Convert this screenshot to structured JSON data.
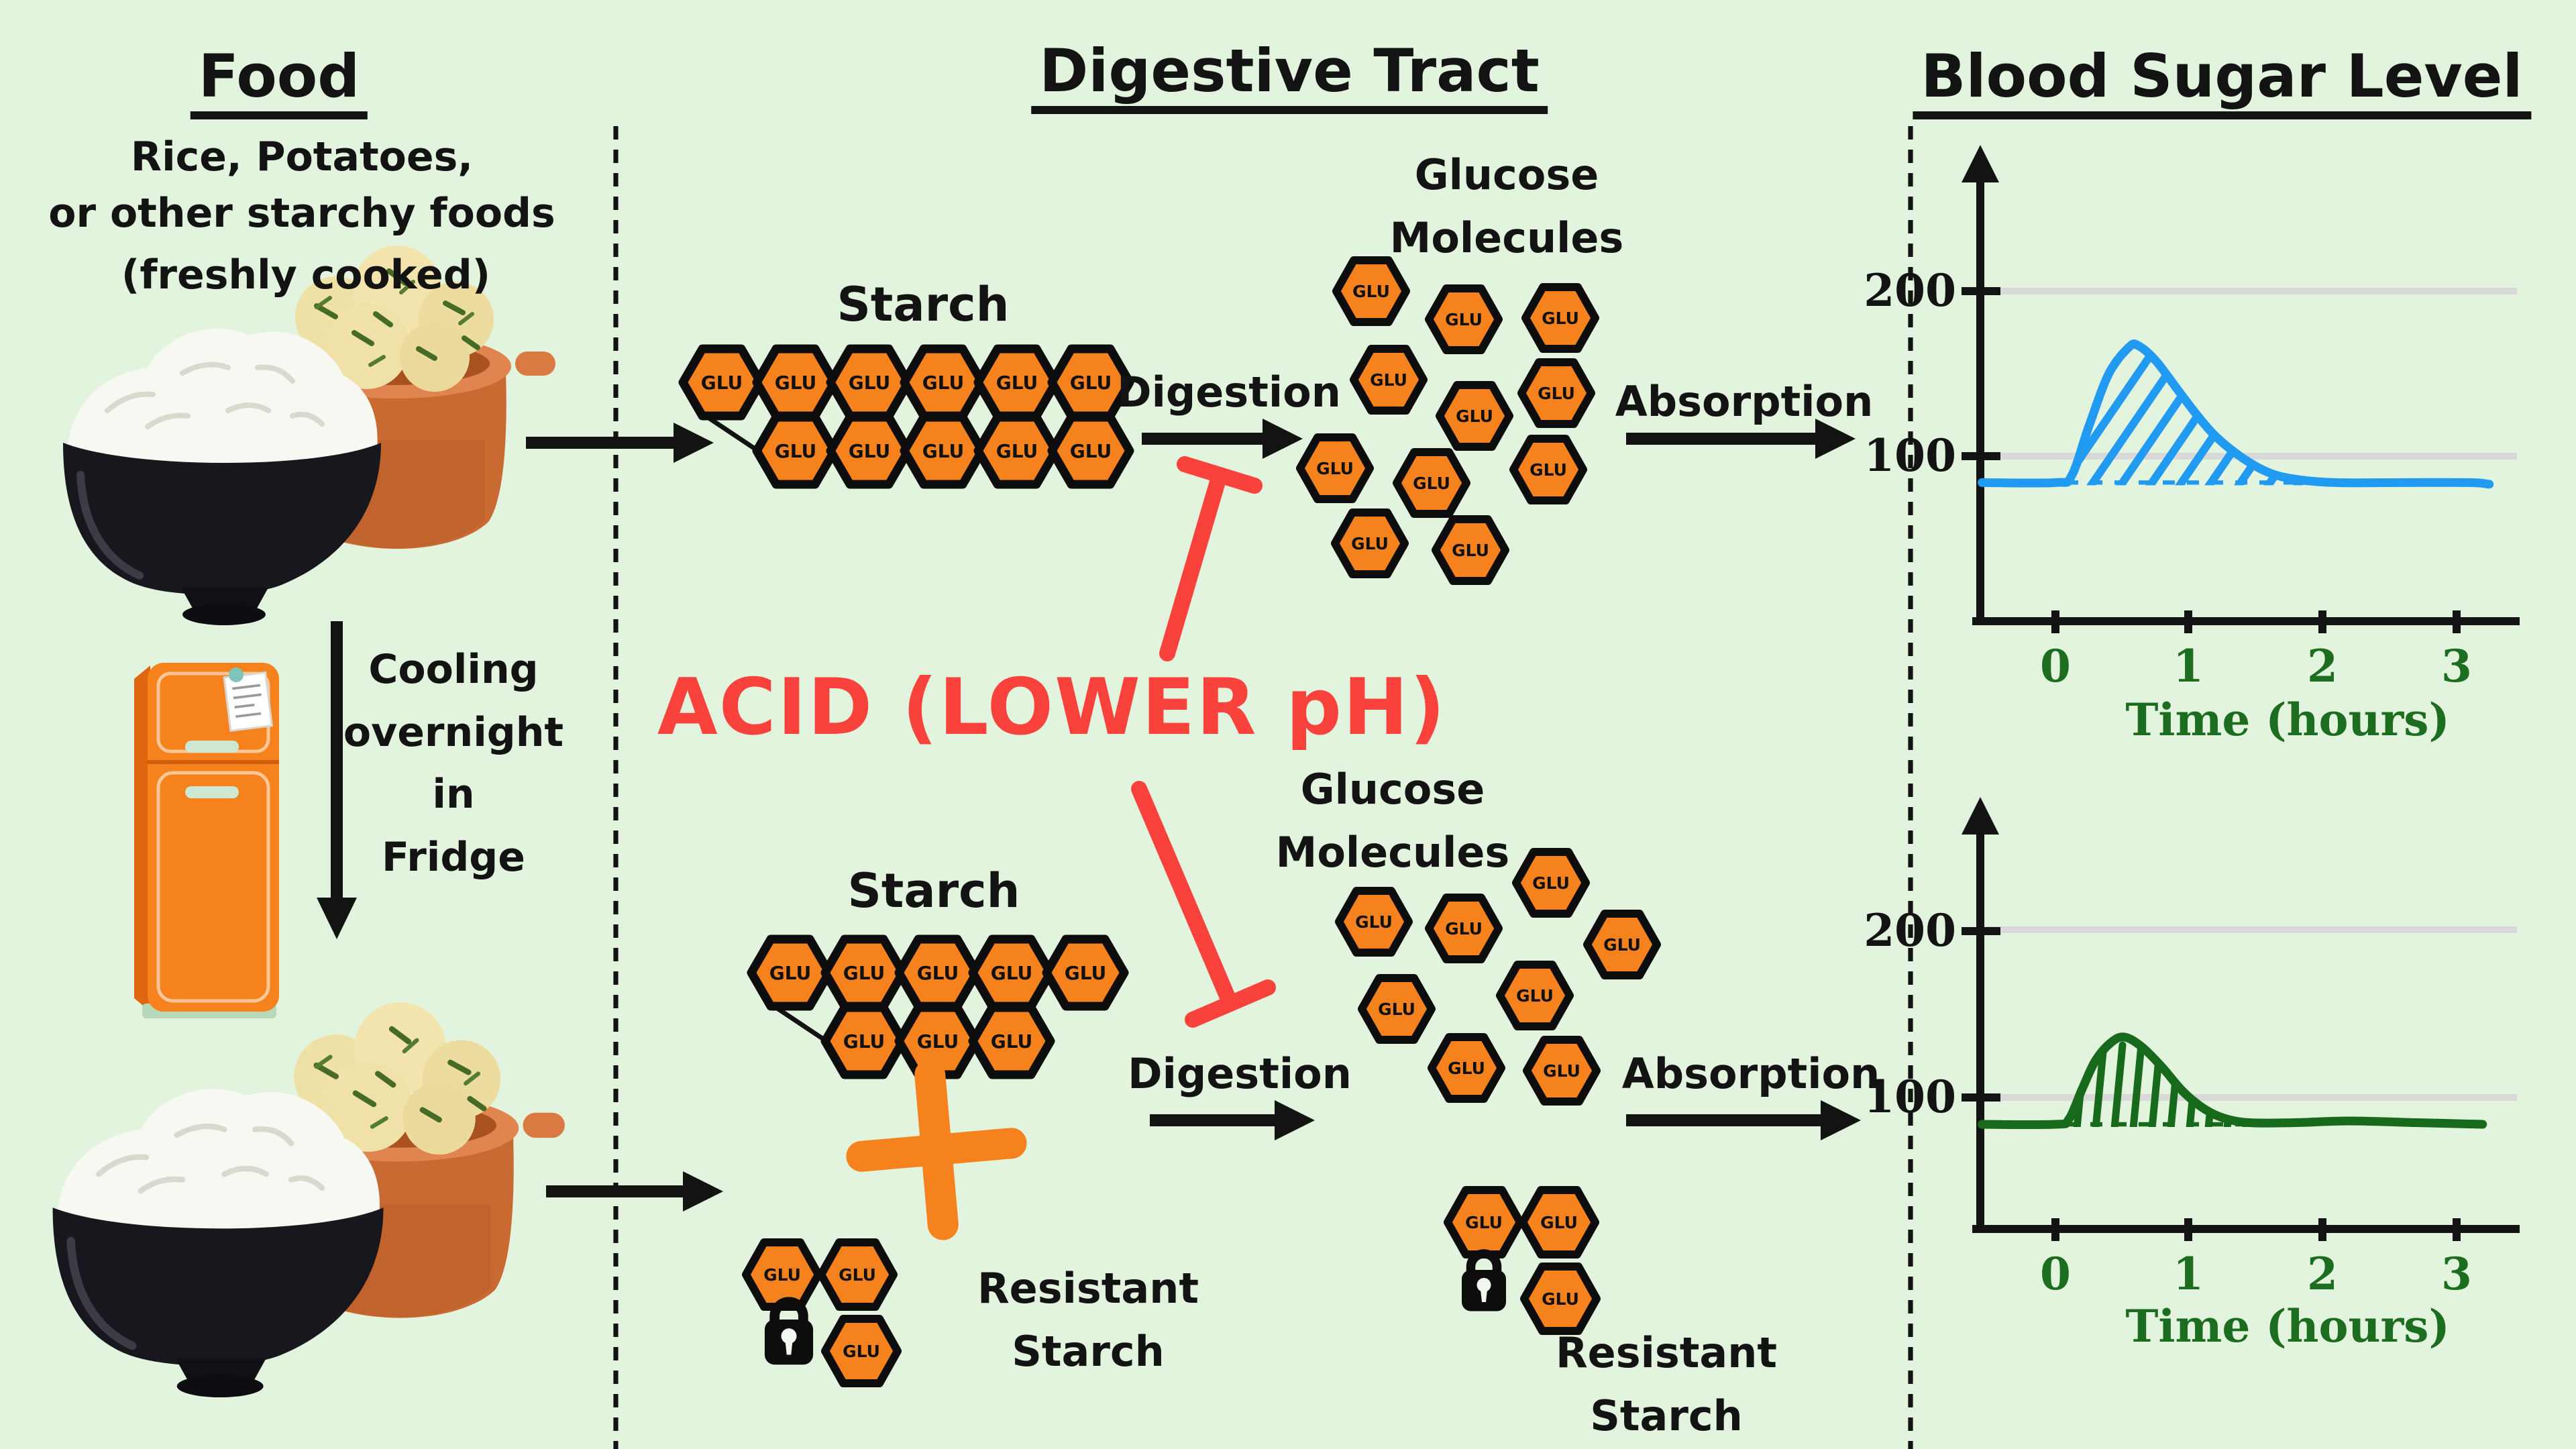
{
  "titles": {
    "food": "Food",
    "digestive_tract": "Digestive Tract",
    "blood_sugar": "Blood Sugar Level"
  },
  "food_column": {
    "description_lines": [
      "Rice, Potatoes,",
      "or other starchy foods",
      "(freshly cooked)"
    ],
    "cooling_lines": [
      "Cooling",
      "overnight",
      "in",
      "Fridge"
    ]
  },
  "digestive_column": {
    "starch_label": "Starch",
    "digestion_label": "Digestion",
    "absorption_label": "Absorption",
    "glucose_molecules_line1": "Glucose",
    "glucose_molecules_line2": "Molecules",
    "acid_label": "ACID (LOWER pH)",
    "resistant_starch_line1": "Resistant",
    "resistant_starch_line2": "Starch",
    "glucose_unit_label": "GLU",
    "fresh_starch_chain": {
      "row1_count": 6,
      "row2_count": 5
    },
    "cooled_starch_chain": {
      "row1_count": 5,
      "row2_count": 3
    },
    "fresh_glucose_count": 11,
    "cooled_glucose_count": 8,
    "resistant_trio_count": 3
  },
  "colors": {
    "background": "#e2f3de",
    "text_black": "#131313",
    "hexagon_orange": "#f6821d",
    "hexagon_border": "#0d0d0d",
    "acid_red": "#f9423b",
    "plus_orange": "#f6821d",
    "fridge_orange": "#f5821c",
    "fresh_curve_blue": "#219af2",
    "cooled_curve_green": "#17691b",
    "axis_label_green": "#1d6d20",
    "gridline_gray": "#d9d9d9"
  },
  "chart_data": [
    {
      "type": "area",
      "xlabel": "Time (hours)",
      "x_ticks": [
        "0",
        "1",
        "2",
        "3"
      ],
      "y_ticks": [
        "200",
        "100"
      ],
      "y_gridline_values": [
        200,
        100
      ],
      "x_range": [
        -0.55,
        3.3
      ],
      "y_range": [
        0,
        270
      ],
      "baseline_value": 84,
      "hatch": "diagonal",
      "color": "#219af2",
      "series": [
        {
          "name": "freshly cooked starch",
          "x": [
            -0.55,
            0,
            0.12,
            0.25,
            0.4,
            0.55,
            0.62,
            0.75,
            0.9,
            1.05,
            1.2,
            1.4,
            1.6,
            1.8,
            2.1,
            2.6,
            3.1,
            3.25
          ],
          "y": [
            84,
            84,
            88,
            118,
            150,
            166,
            167,
            158,
            142,
            126,
            112,
            99,
            90,
            86,
            84,
            84,
            84,
            83
          ]
        }
      ]
    },
    {
      "type": "area",
      "xlabel": "Time (hours)",
      "x_ticks": [
        "0",
        "1",
        "2",
        "3"
      ],
      "y_ticks": [
        "200",
        "100"
      ],
      "y_gridline_values": [
        200,
        100
      ],
      "x_range": [
        -0.55,
        3.3
      ],
      "y_range": [
        0,
        270
      ],
      "baseline_value": 84,
      "hatch": "vertical",
      "color": "#17691b",
      "series": [
        {
          "name": "cooled overnight starch",
          "x": [
            -0.55,
            0,
            0.1,
            0.2,
            0.3,
            0.42,
            0.52,
            0.65,
            0.8,
            0.95,
            1.1,
            1.25,
            1.45,
            1.8,
            2.2,
            2.7,
            3.2
          ],
          "y": [
            84,
            84,
            87,
            105,
            122,
            133,
            136,
            130,
            118,
            104,
            94,
            88,
            85,
            85,
            86,
            85,
            84
          ]
        }
      ]
    }
  ]
}
